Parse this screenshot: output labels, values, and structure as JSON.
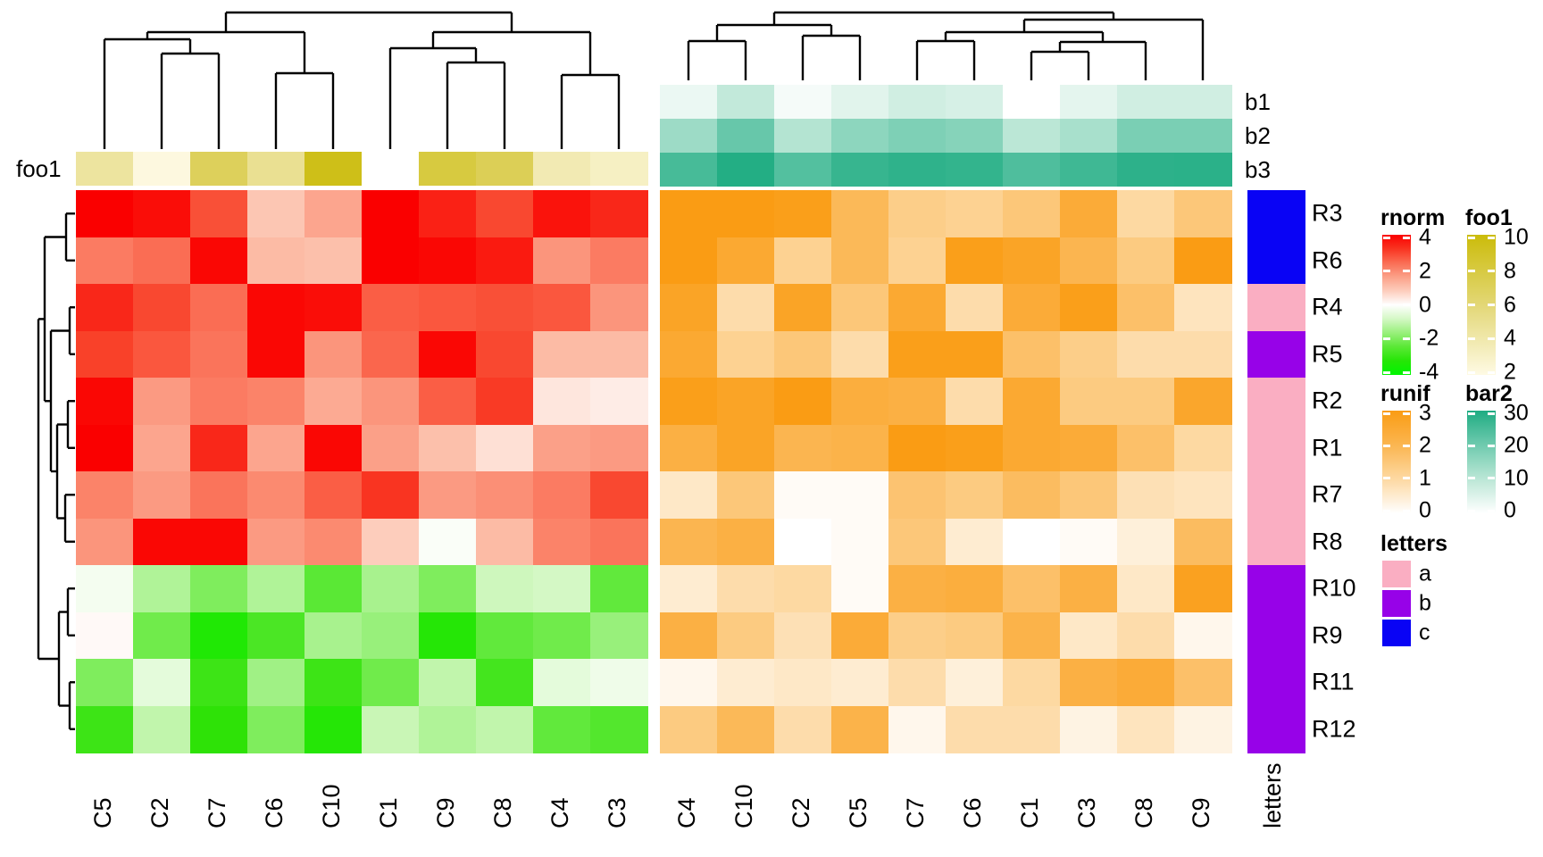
{
  "chart_data": {
    "type": "heatmap",
    "title": "",
    "heatmap_left": {
      "measure": "rnorm",
      "columns": [
        "C5",
        "C2",
        "C7",
        "C6",
        "C10",
        "C1",
        "C9",
        "C8",
        "C4",
        "C3"
      ],
      "rows": [
        "R3",
        "R6",
        "R4",
        "R5",
        "R2",
        "R1",
        "R7",
        "R8",
        "R10",
        "R9",
        "R11",
        "R12"
      ],
      "values": [
        [
          4.0,
          3.8,
          2.8,
          0.9,
          1.5,
          4.0,
          3.5,
          2.9,
          3.7,
          3.4
        ],
        [
          2.2,
          2.4,
          3.9,
          1.1,
          1.0,
          4.0,
          3.9,
          3.6,
          1.8,
          2.2
        ],
        [
          3.4,
          2.9,
          2.4,
          3.9,
          3.8,
          2.6,
          2.7,
          2.8,
          2.7,
          1.8
        ],
        [
          3.0,
          2.7,
          2.3,
          3.9,
          1.8,
          2.5,
          3.9,
          2.9,
          1.1,
          1.1
        ],
        [
          3.9,
          1.7,
          2.2,
          2.1,
          1.4,
          1.8,
          2.6,
          3.1,
          0.4,
          0.3
        ],
        [
          4.0,
          1.5,
          3.4,
          1.5,
          3.9,
          1.6,
          1.0,
          0.5,
          1.6,
          1.7
        ],
        [
          2.1,
          1.7,
          2.3,
          2.0,
          2.6,
          3.2,
          1.7,
          1.9,
          2.2,
          2.9
        ],
        [
          1.8,
          3.9,
          3.9,
          1.7,
          2.0,
          0.8,
          -0.1,
          1.1,
          2.1,
          2.3
        ],
        [
          -0.2,
          -1.3,
          -1.9,
          -1.3,
          -2.4,
          -1.4,
          -1.9,
          -0.9,
          -0.8,
          -2.3
        ],
        [
          0.1,
          -2.1,
          -3.3,
          -2.6,
          -1.4,
          -1.6,
          -3.2,
          -2.3,
          -2.1,
          -1.6
        ],
        [
          -1.9,
          -0.5,
          -2.8,
          -1.5,
          -2.8,
          -2.1,
          -1.1,
          -2.7,
          -0.5,
          -0.3
        ],
        [
          -2.8,
          -1.1,
          -3.0,
          -1.9,
          -3.2,
          -1.0,
          -1.3,
          -1.1,
          -2.3,
          -2.5
        ]
      ],
      "scale": {
        "min": -4,
        "max": 4,
        "stops_pos": [
          [
            0,
            "#FFFFFF"
          ],
          [
            0.25,
            "#FCC0AB"
          ],
          [
            0.5,
            "#FB8A70"
          ],
          [
            0.75,
            "#F94129"
          ],
          [
            1,
            "#FA0000"
          ]
        ],
        "stops_neg": [
          [
            0,
            "#FFFFFF"
          ],
          [
            0.25,
            "#C9F6B6"
          ],
          [
            0.5,
            "#77EC53"
          ],
          [
            0.75,
            "#2EE207"
          ],
          [
            1,
            "#00F500"
          ]
        ]
      }
    },
    "heatmap_right": {
      "measure": "runif",
      "columns": [
        "C4",
        "C10",
        "C2",
        "C5",
        "C7",
        "C6",
        "C1",
        "C3",
        "C8",
        "C9"
      ],
      "rows": [
        "R3",
        "R6",
        "R4",
        "R5",
        "R2",
        "R1",
        "R7",
        "R8",
        "R10",
        "R9",
        "R11",
        "R12"
      ],
      "values": [
        [
          3.0,
          3.0,
          2.9,
          1.9,
          1.3,
          1.2,
          1.5,
          2.4,
          1.0,
          1.5
        ],
        [
          3.0,
          2.5,
          1.2,
          1.9,
          1.2,
          2.9,
          2.7,
          2.0,
          1.4,
          3.0
        ],
        [
          2.7,
          0.9,
          2.7,
          1.5,
          2.5,
          0.9,
          2.4,
          2.9,
          1.7,
          0.7
        ],
        [
          2.5,
          1.2,
          1.5,
          0.9,
          2.9,
          2.9,
          1.7,
          1.3,
          0.9,
          0.9
        ],
        [
          2.9,
          2.7,
          3.0,
          2.3,
          2.2,
          0.9,
          2.5,
          1.4,
          1.4,
          2.6
        ],
        [
          2.2,
          2.7,
          2.0,
          2.1,
          3.0,
          2.9,
          2.5,
          2.4,
          1.7,
          1.0
        ],
        [
          0.6,
          1.5,
          0.1,
          0.1,
          1.6,
          1.4,
          1.8,
          1.5,
          0.8,
          0.7
        ],
        [
          2.0,
          2.2,
          0.0,
          0.1,
          1.5,
          0.5,
          0.0,
          0.1,
          0.4,
          1.8
        ],
        [
          0.5,
          0.9,
          1.0,
          0.1,
          2.2,
          2.3,
          1.7,
          2.2,
          0.6,
          2.8
        ],
        [
          2.2,
          1.4,
          0.8,
          2.4,
          1.3,
          1.4,
          2.1,
          0.6,
          0.9,
          0.2
        ],
        [
          0.2,
          0.5,
          0.6,
          0.5,
          0.9,
          0.4,
          1.0,
          2.2,
          2.4,
          1.7
        ],
        [
          1.4,
          1.9,
          0.9,
          2.1,
          0.2,
          0.9,
          0.9,
          0.3,
          0.7,
          0.3
        ]
      ],
      "scale": {
        "min": 0,
        "max": 3,
        "stops": [
          [
            0,
            "#FFFFFF"
          ],
          [
            0.33,
            "#FDD9A3"
          ],
          [
            0.67,
            "#FBB54F"
          ],
          [
            1,
            "#FA9C14"
          ]
        ]
      }
    },
    "col_annotation_left": {
      "title": "foo1",
      "values": [
        4.5,
        2.2,
        7,
        5,
        9.5,
        null,
        8,
        7.2,
        3.8,
        3.2
      ],
      "scale": {
        "min": 2,
        "max": 10,
        "stops": [
          [
            0,
            "#FEFAE4"
          ],
          [
            0.5,
            "#E3D776"
          ],
          [
            1,
            "#CBBC0A"
          ]
        ]
      }
    },
    "col_annotation_right": {
      "rows": [
        "b1",
        "b2",
        "b3"
      ],
      "values": [
        [
          3,
          9,
          1.5,
          4.5,
          7,
          6,
          0,
          4,
          7,
          7
        ],
        [
          14,
          21,
          11,
          16,
          18,
          17,
          10,
          12.5,
          18.5,
          18.5
        ],
        [
          25,
          29.5,
          23.5,
          27,
          28,
          27.5,
          24,
          26,
          28.2,
          28.5
        ]
      ],
      "scale": {
        "min": 0,
        "max": 30,
        "stops": [
          [
            0,
            "#FFFFFF"
          ],
          [
            0.33,
            "#BCE7D6"
          ],
          [
            0.67,
            "#6ECAAE"
          ],
          [
            1,
            "#1FAC82"
          ]
        ]
      }
    },
    "row_annotation": {
      "title": "letters",
      "values": [
        "c",
        "c",
        "a",
        "b",
        "a",
        "a",
        "a",
        "a",
        "b",
        "b",
        "b",
        "b"
      ],
      "colors": {
        "a": "#FAAEC2",
        "b": "#9702E8",
        "c": "#0903F5"
      }
    },
    "legends": {
      "rnorm": {
        "title": "rnorm",
        "ticks": [
          4,
          2,
          0,
          -2,
          -4
        ]
      },
      "foo1": {
        "title": "foo1",
        "ticks": [
          10,
          8,
          6,
          4,
          2
        ]
      },
      "runif": {
        "title": "runif",
        "ticks": [
          3,
          2,
          1,
          0
        ]
      },
      "bar2": {
        "title": "bar2",
        "ticks": [
          30,
          20,
          10,
          0
        ]
      },
      "letters": {
        "title": "letters",
        "entries": [
          {
            "label": "a",
            "color": "#FAAEC2"
          },
          {
            "label": "b",
            "color": "#9702E8"
          },
          {
            "label": "c",
            "color": "#0903F5"
          }
        ]
      }
    },
    "dendrograms": {
      "row": {
        "merges": [
          [
            "R3",
            "R6",
            74
          ],
          [
            "R4",
            "R5",
            78
          ],
          [
            "R2",
            "R1",
            76
          ],
          [
            "R7",
            "R8",
            73
          ],
          [
            "#2",
            "#3",
            64
          ],
          [
            "#1",
            "#4",
            57
          ],
          [
            "#0",
            "#5",
            50
          ],
          [
            "R10",
            "R9",
            76
          ],
          [
            "R11",
            "R12",
            78
          ],
          [
            "#7",
            "#8",
            66
          ],
          [
            "#6",
            "#9",
            43
          ]
        ]
      },
      "col_left": {
        "merges": [
          [
            "C2",
            "C7",
            60
          ],
          [
            "C5",
            "#0",
            44
          ],
          [
            "C6",
            "C10",
            82
          ],
          [
            "#1",
            "#2",
            36
          ],
          [
            "C9",
            "C8",
            70
          ],
          [
            "C1",
            "#4",
            54
          ],
          [
            "C4",
            "C3",
            84
          ],
          [
            "#5",
            "#6",
            36
          ],
          [
            "#3",
            "#7",
            14
          ]
        ]
      },
      "col_right": {
        "merges": [
          [
            "C4",
            "C10",
            46
          ],
          [
            "C2",
            "C5",
            40
          ],
          [
            "#0",
            "#1",
            28
          ],
          [
            "C7",
            "C6",
            46
          ],
          [
            "C1",
            "C3",
            58
          ],
          [
            "#4",
            "C8",
            47
          ],
          [
            "#3",
            "#5",
            36
          ],
          [
            "#6",
            "C9",
            22
          ],
          [
            "#2",
            "#7",
            14
          ]
        ]
      }
    }
  }
}
